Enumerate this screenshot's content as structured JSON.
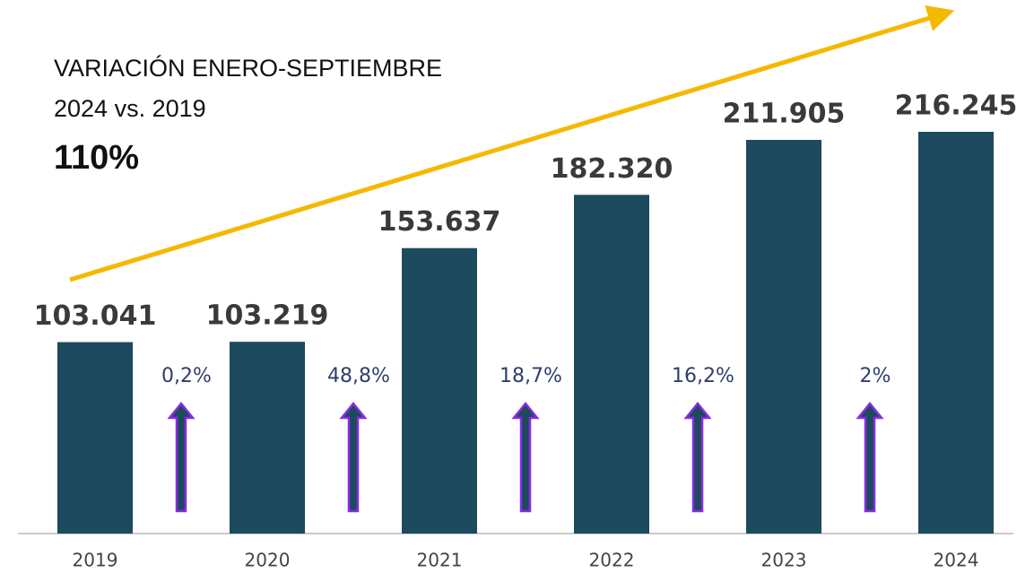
{
  "chart_data": {
    "type": "bar",
    "title": "VARIACIÓN ENERO-SEPTIEMBRE",
    "subtitle": "2024 vs. 2019",
    "headline": "110%",
    "categories": [
      "2019",
      "2020",
      "2021",
      "2022",
      "2023",
      "2024"
    ],
    "values": [
      103041,
      103219,
      153637,
      182320,
      211905,
      216245
    ],
    "value_labels": [
      "103.041",
      "103.219",
      "153.637",
      "182.320",
      "211.905",
      "216.245"
    ],
    "annotations": [
      "0,2%",
      "48,8%",
      "18,7%",
      "16,2%",
      "2%"
    ],
    "color": "#1d4a5e"
  }
}
